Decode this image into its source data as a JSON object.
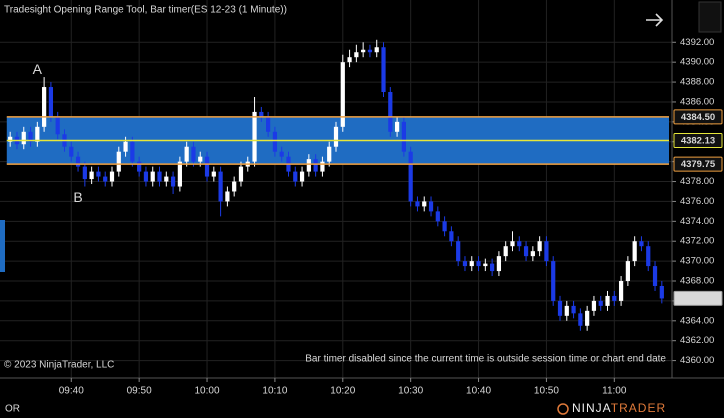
{
  "chart_data": {
    "type": "candlestick",
    "title": "Tradesight Opening Range Tool, Bar timer(ES 12-23 (1 Minute))",
    "open": [
      4382,
      4382.5,
      4381.75,
      4383,
      4382,
      4383.5,
      4387.5,
      4384.5,
      4382.75,
      4381.5,
      4380.5,
      4379.5,
      4378.25,
      4379,
      4378.5,
      4378,
      4379,
      4381,
      4382,
      4380,
      4379,
      4378,
      4379,
      4378,
      4378.5,
      4377.5,
      4380,
      4381.5,
      4380,
      4380.5,
      4378.5,
      4379,
      4376,
      4377,
      4378,
      4379.5,
      4380,
      4385,
      4384.5,
      4383,
      4381,
      4380.5,
      4379,
      4378,
      4379,
      4380.25,
      4379,
      4380,
      4381.5,
      4383.5,
      4390,
      4390.5,
      4391,
      4391.25,
      4391,
      4391.5,
      4387,
      4383,
      4384,
      4381,
      4376,
      4375.5,
      4376,
      4375,
      4374,
      4373,
      4372,
      4370,
      4369.5,
      4370,
      4369.5,
      4369.75,
      4369,
      4370.5,
      4371.5,
      4372,
      4371.5,
      4370.5,
      4371,
      4372,
      4370,
      4366,
      4364.5,
      4365.5,
      4364.75,
      4363.5,
      4365,
      4366,
      4365.5,
      4366.5,
      4366,
      4368,
      4370,
      4372,
      4371.5,
      4369.5,
      4367.5
    ],
    "high": [
      4383,
      4383,
      4383.5,
      4383.5,
      4384,
      4388.5,
      4388,
      4385,
      4383.25,
      4382,
      4381,
      4380,
      4379.5,
      4379.5,
      4379,
      4379.5,
      4381.5,
      4382.5,
      4382.5,
      4380.5,
      4379.5,
      4379.5,
      4379.5,
      4379,
      4379,
      4380.5,
      4382,
      4382,
      4381,
      4381,
      4379.5,
      4379.5,
      4377.5,
      4378.5,
      4380,
      4380.5,
      4386.5,
      4385.5,
      4385,
      4383.5,
      4381.5,
      4381,
      4379.5,
      4379.5,
      4380.75,
      4380.75,
      4380.5,
      4382,
      4384,
      4390.75,
      4391.25,
      4391.75,
      4392,
      4391.75,
      4392.25,
      4392,
      4387.5,
      4384.5,
      4384.5,
      4381.5,
      4376.5,
      4376.5,
      4376.5,
      4375.5,
      4374.5,
      4373.5,
      4372.5,
      4370.5,
      4370.5,
      4370.5,
      4370.25,
      4370.25,
      4371,
      4372,
      4373,
      4372.5,
      4372,
      4371.5,
      4372.5,
      4372.5,
      4370.5,
      4366.5,
      4366,
      4366,
      4365.25,
      4365.5,
      4366.5,
      4366.5,
      4367,
      4367,
      4368.5,
      4370.5,
      4372.5,
      4372.5,
      4372,
      4370,
      4368
    ],
    "low": [
      4381.5,
      4381.25,
      4381.25,
      4381.5,
      4381.5,
      4383,
      4384,
      4382.25,
      4381,
      4380,
      4379,
      4377.5,
      4377.75,
      4378,
      4377.5,
      4377.5,
      4378.5,
      4380.5,
      4379.5,
      4378.5,
      4377.5,
      4377.5,
      4377.5,
      4377.5,
      4376.75,
      4377,
      4379.5,
      4379.5,
      4379.5,
      4378,
      4378,
      4374.5,
      4375.5,
      4376.5,
      4377.5,
      4379,
      4379.5,
      4384,
      4382.5,
      4380.5,
      4380,
      4378.5,
      4377.5,
      4377.5,
      4378.5,
      4378.5,
      4378.5,
      4379.5,
      4381,
      4383,
      4389.5,
      4390,
      4390.5,
      4390.5,
      4390.5,
      4386.5,
      4382.5,
      4382.5,
      4380.5,
      4375.5,
      4375,
      4375,
      4374.5,
      4373.5,
      4372.5,
      4371.5,
      4369.5,
      4369,
      4369,
      4369,
      4369,
      4368.5,
      4368.5,
      4370,
      4371,
      4371,
      4370,
      4370,
      4370.5,
      4369.5,
      4365.5,
      4364,
      4364,
      4364.25,
      4363,
      4363,
      4364.5,
      4365,
      4365,
      4365.5,
      4365.5,
      4367.5,
      4369.5,
      4371,
      4369,
      4367,
      4365.75
    ],
    "close": [
      4382.5,
      4381.75,
      4383,
      4382,
      4383.5,
      4387.5,
      4384.5,
      4382.75,
      4381.5,
      4380.5,
      4379.5,
      4378.25,
      4379,
      4378.5,
      4378,
      4379,
      4381,
      4382,
      4380,
      4379,
      4378,
      4379,
      4378,
      4378.5,
      4377.5,
      4380,
      4381.5,
      4380,
      4380.5,
      4378.5,
      4379,
      4376,
      4377,
      4378,
      4379.5,
      4380,
      4385,
      4384.5,
      4383,
      4381,
      4380.5,
      4379,
      4378,
      4379,
      4380.25,
      4379,
      4380,
      4381.5,
      4383.5,
      4390,
      4390.5,
      4391,
      4391.25,
      4391,
      4391.5,
      4387,
      4383,
      4384,
      4381,
      4376,
      4375.5,
      4376,
      4375,
      4374,
      4373,
      4372,
      4370,
      4369.5,
      4370,
      4369.5,
      4369.75,
      4369,
      4370.5,
      4371.5,
      4372,
      4371.5,
      4370.5,
      4371,
      4372,
      4370,
      4366,
      4364.5,
      4365.5,
      4364.75,
      4363.5,
      4365,
      4366,
      4365.5,
      4366.5,
      4366,
      4368,
      4370,
      4372,
      4371.5,
      4369.5,
      4367.5,
      4366.25
    ],
    "up_color": "#ffffff",
    "down_color": "#1b3ae6",
    "xlim": [
      -1.5,
      97.5
    ],
    "xticks": [
      {
        "value": 9,
        "label": "09:40"
      },
      {
        "value": 19,
        "label": "09:50"
      },
      {
        "value": 29,
        "label": "10:00"
      },
      {
        "value": 39,
        "label": "10:10"
      },
      {
        "value": 49,
        "label": "10:20"
      },
      {
        "value": 59,
        "label": "10:30"
      },
      {
        "value": 69,
        "label": "10:40"
      },
      {
        "value": 79,
        "label": "10:50"
      },
      {
        "value": 89,
        "label": "11:00"
      }
    ],
    "ylim": [
      4358.25,
      4396.25
    ],
    "yticks": [
      {
        "value": 4360,
        "label": "4360.00"
      },
      {
        "value": 4362,
        "label": "4362.00"
      },
      {
        "value": 4364,
        "label": "4364.00"
      },
      {
        "value": 4366,
        "label": "4366.00"
      },
      {
        "value": 4368,
        "label": "4368.00"
      },
      {
        "value": 4370,
        "label": "4370.00"
      },
      {
        "value": 4372,
        "label": "4372.00"
      },
      {
        "value": 4374,
        "label": "4374.00"
      },
      {
        "value": 4376,
        "label": "4376.00"
      },
      {
        "value": 4378,
        "label": "4378.00"
      },
      {
        "value": 4380,
        "label": "4380.00"
      },
      {
        "value": 4382,
        "label": "4382.00"
      },
      {
        "value": 4384,
        "label": "4384.00"
      },
      {
        "value": 4386,
        "label": "4386.00"
      },
      {
        "value": 4388,
        "label": "4388.00"
      },
      {
        "value": 4390,
        "label": "4390.00"
      },
      {
        "value": 4392,
        "label": "4392.00"
      }
    ],
    "grid": true,
    "opening_range": {
      "high": {
        "value": 4384.5,
        "label": "4384.50"
      },
      "mid": 4382.13,
      "low": 4379.75,
      "fill": "#1f6cc2",
      "edge_color": "#f0a040",
      "mid_color": "#e6e63a"
    },
    "last_price": 4366.25,
    "annotations": [
      {
        "text": "A",
        "x": 4,
        "y": 4389.2
      },
      {
        "text": "B",
        "x": 10,
        "y": 4376.3
      }
    ],
    "annotation_color": "#cfe060",
    "copyright": "© 2023 NinjaTrader, LLC",
    "status": "Bar timer disabled since the current time is outside session time or chart end date"
  },
  "footer": {
    "tab": "OR",
    "brand_a": "NINJA",
    "brand_b": "TRADER"
  }
}
